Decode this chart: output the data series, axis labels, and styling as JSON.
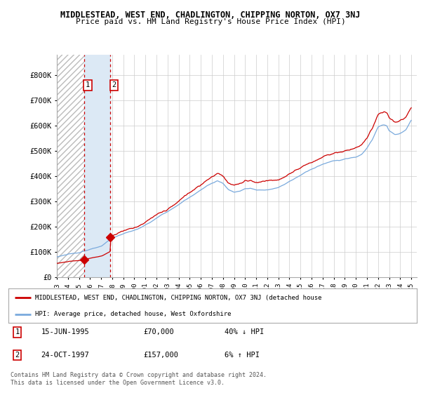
{
  "title": "MIDDLESTEAD, WEST END, CHADLINGTON, CHIPPING NORTON, OX7 3NJ",
  "subtitle": "Price paid vs. HM Land Registry's House Price Index (HPI)",
  "legend_line1": "MIDDLESTEAD, WEST END, CHADLINGTON, CHIPPING NORTON, OX7 3NJ (detached house",
  "legend_line2": "HPI: Average price, detached house, West Oxfordshire",
  "footnote": "Contains HM Land Registry data © Crown copyright and database right 2024.\nThis data is licensed under the Open Government Licence v3.0.",
  "sale1_date": "15-JUN-1995",
  "sale1_price": "£70,000",
  "sale1_hpi": "40% ↓ HPI",
  "sale2_date": "24-OCT-1997",
  "sale2_price": "£157,000",
  "sale2_hpi": "6% ↑ HPI",
  "ylim": [
    0,
    880000
  ],
  "yticks": [
    0,
    100000,
    200000,
    300000,
    400000,
    500000,
    600000,
    700000,
    800000
  ],
  "ytick_labels": [
    "£0",
    "£100K",
    "£200K",
    "£300K",
    "£400K",
    "£500K",
    "£600K",
    "£700K",
    "£800K"
  ],
  "background_color": "#ffffff",
  "hatch_color": "#bbbbbb",
  "blue_fill_color": "#dce9f5",
  "grid_color": "#cccccc",
  "red_line_color": "#cc0000",
  "blue_line_color": "#7aaadd",
  "sale1_x_year": 1995.45,
  "sale2_x_year": 1997.81,
  "xmin": 1993.0,
  "xmax": 2025.5
}
